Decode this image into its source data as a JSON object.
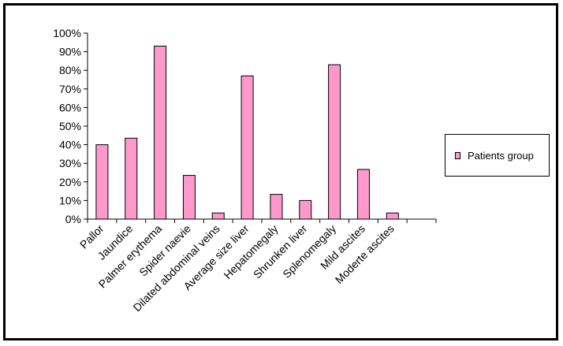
{
  "chart_data": {
    "type": "bar",
    "categories": [
      "Pallor",
      "Jaundice",
      "Palmer erythema",
      "Spider naevie",
      "Dilated abdominal veins",
      "Average size liver",
      "Hepatomegaly",
      "Shrunken liver",
      "Splenomegaly",
      "Mild ascites",
      "Moderte ascites"
    ],
    "series": [
      {
        "name": "Patients group",
        "values": [
          40,
          43.5,
          93,
          23.5,
          3.3,
          77,
          13.3,
          10,
          83,
          26.7,
          3.3
        ]
      }
    ],
    "yticks": [
      "0%",
      "10%",
      "20%",
      "30%",
      "40%",
      "50%",
      "60%",
      "70%",
      "80%",
      "90%",
      "100%"
    ],
    "ylim": [
      0,
      100
    ],
    "legend_position": "right",
    "grid": false,
    "bar_color": "#ff99cc"
  }
}
